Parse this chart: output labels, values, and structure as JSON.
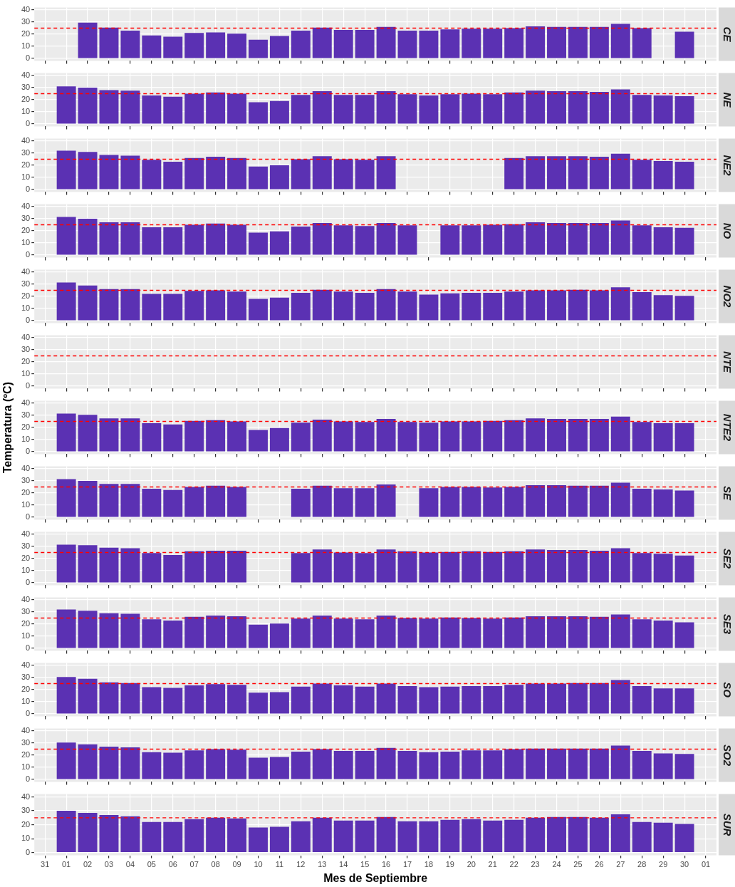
{
  "chart_data": [
    {
      "type": "bar",
      "title": "CE",
      "categories": [
        "31",
        "01",
        "02",
        "03",
        "04",
        "05",
        "06",
        "07",
        "08",
        "09",
        "10",
        "11",
        "12",
        "13",
        "14",
        "15",
        "16",
        "17",
        "18",
        "19",
        "20",
        "21",
        "22",
        "23",
        "24",
        "25",
        "26",
        "27",
        "28",
        "29",
        "30",
        "01"
      ],
      "values": [
        null,
        null,
        29.5,
        25.5,
        23,
        19,
        18,
        21,
        21.5,
        20.5,
        15.5,
        18.5,
        23,
        25.5,
        23.5,
        23.5,
        26,
        23,
        23,
        24,
        24.5,
        24.5,
        25,
        26.5,
        26,
        26,
        26,
        28.5,
        25,
        null,
        22,
        null
      ],
      "color": "#5b31b3",
      "ylim": [
        -2,
        42
      ],
      "yticks": [
        0,
        10,
        20,
        30,
        40
      ],
      "grid": true,
      "ref_lines": [
        {
          "axis": "y",
          "value": 25,
          "color": "#ff0000",
          "line_style": "dashed"
        }
      ],
      "tick_labels": "y"
    },
    {
      "type": "bar",
      "title": "NE",
      "categories": [
        "31",
        "01",
        "02",
        "03",
        "04",
        "05",
        "06",
        "07",
        "08",
        "09",
        "10",
        "11",
        "12",
        "13",
        "14",
        "15",
        "16",
        "17",
        "18",
        "19",
        "20",
        "21",
        "22",
        "23",
        "24",
        "25",
        "26",
        "27",
        "28",
        "29",
        "30",
        "01"
      ],
      "values": [
        null,
        31,
        30,
        28,
        27.5,
        23.5,
        22.5,
        25,
        26,
        25,
        18,
        19,
        24,
        27,
        24,
        24,
        27,
        24.5,
        23.5,
        24.5,
        25,
        24.5,
        26,
        27.5,
        27,
        27,
        26.5,
        28.5,
        24,
        23.5,
        23,
        null
      ],
      "color": "#5b31b3",
      "ylim": [
        -2,
        42
      ],
      "yticks": [
        0,
        10,
        20,
        30,
        40
      ],
      "grid": true,
      "ref_lines": [
        {
          "axis": "y",
          "value": 25,
          "color": "#ff0000",
          "line_style": "dashed"
        }
      ],
      "tick_labels": "y"
    },
    {
      "type": "bar",
      "title": "NE2",
      "categories": [
        "31",
        "01",
        "02",
        "03",
        "04",
        "05",
        "06",
        "07",
        "08",
        "09",
        "10",
        "11",
        "12",
        "13",
        "14",
        "15",
        "16",
        "17",
        "18",
        "19",
        "20",
        "21",
        "22",
        "23",
        "24",
        "25",
        "26",
        "27",
        "28",
        "29",
        "30",
        "01"
      ],
      "values": [
        null,
        32,
        31,
        28.5,
        28,
        24.5,
        23,
        26,
        27,
        26,
        19,
        20,
        25,
        27.5,
        25,
        24.5,
        27.5,
        null,
        null,
        null,
        null,
        null,
        26,
        27.5,
        27.5,
        27.5,
        27,
        29.5,
        24.5,
        23.5,
        23,
        null
      ],
      "color": "#5b31b3",
      "ylim": [
        -2,
        42
      ],
      "yticks": [
        0,
        10,
        20,
        30,
        40
      ],
      "grid": true,
      "ref_lines": [
        {
          "axis": "y",
          "value": 25,
          "color": "#ff0000",
          "line_style": "dashed"
        }
      ],
      "tick_labels": "y"
    },
    {
      "type": "bar",
      "title": "NO",
      "categories": [
        "31",
        "01",
        "02",
        "03",
        "04",
        "05",
        "06",
        "07",
        "08",
        "09",
        "10",
        "11",
        "12",
        "13",
        "14",
        "15",
        "16",
        "17",
        "18",
        "19",
        "20",
        "21",
        "22",
        "23",
        "24",
        "25",
        "26",
        "27",
        "28",
        "29",
        "30",
        "01"
      ],
      "values": [
        null,
        31.5,
        30,
        27,
        27,
        23,
        23,
        25,
        26,
        25,
        18.5,
        19.5,
        23.5,
        26.5,
        24.5,
        24,
        26.5,
        24.5,
        null,
        24.5,
        24.5,
        25,
        25.5,
        27,
        26.5,
        26.5,
        26.5,
        28.5,
        24.5,
        23,
        22.5,
        null
      ],
      "color": "#5b31b3",
      "ylim": [
        -2,
        42
      ],
      "yticks": [
        0,
        10,
        20,
        30,
        40
      ],
      "grid": true,
      "ref_lines": [
        {
          "axis": "y",
          "value": 25,
          "color": "#ff0000",
          "line_style": "dashed"
        }
      ],
      "tick_labels": "y"
    },
    {
      "type": "bar",
      "title": "NO2",
      "categories": [
        "31",
        "01",
        "02",
        "03",
        "04",
        "05",
        "06",
        "07",
        "08",
        "09",
        "10",
        "11",
        "12",
        "13",
        "14",
        "15",
        "16",
        "17",
        "18",
        "19",
        "20",
        "21",
        "22",
        "23",
        "24",
        "25",
        "26",
        "27",
        "28",
        "29",
        "30",
        "01"
      ],
      "values": [
        null,
        31.5,
        29,
        26,
        26,
        22,
        22,
        24.5,
        25,
        24,
        18,
        19,
        23,
        25.5,
        24,
        23,
        26,
        24,
        21.5,
        22.5,
        23,
        23,
        24,
        25,
        25,
        25.5,
        25,
        27.5,
        23.5,
        21,
        20.5,
        null
      ],
      "color": "#5b31b3",
      "ylim": [
        -2,
        42
      ],
      "yticks": [
        0,
        10,
        20,
        30,
        40
      ],
      "grid": true,
      "ref_lines": [
        {
          "axis": "y",
          "value": 25,
          "color": "#ff0000",
          "line_style": "dashed"
        }
      ],
      "tick_labels": "y"
    },
    {
      "type": "bar",
      "title": "NTE",
      "categories": [
        "31",
        "01",
        "02",
        "03",
        "04",
        "05",
        "06",
        "07",
        "08",
        "09",
        "10",
        "11",
        "12",
        "13",
        "14",
        "15",
        "16",
        "17",
        "18",
        "19",
        "20",
        "21",
        "22",
        "23",
        "24",
        "25",
        "26",
        "27",
        "28",
        "29",
        "30",
        "01"
      ],
      "values": [
        null,
        null,
        null,
        null,
        null,
        null,
        null,
        null,
        null,
        null,
        null,
        null,
        null,
        null,
        null,
        null,
        null,
        null,
        null,
        null,
        null,
        null,
        null,
        null,
        null,
        null,
        null,
        null,
        null,
        null,
        null,
        null
      ],
      "color": "#5b31b3",
      "ylim": [
        -2,
        42
      ],
      "yticks": [
        0,
        10,
        20,
        30,
        40
      ],
      "grid": true,
      "ref_lines": [
        {
          "axis": "y",
          "value": 25,
          "color": "#ff0000",
          "line_style": "dashed"
        }
      ],
      "tick_labels": "y"
    },
    {
      "type": "bar",
      "title": "NTE2",
      "ylabel": "Temperatura (ºC)",
      "categories": [
        "31",
        "01",
        "02",
        "03",
        "04",
        "05",
        "06",
        "07",
        "08",
        "09",
        "10",
        "11",
        "12",
        "13",
        "14",
        "15",
        "16",
        "17",
        "18",
        "19",
        "20",
        "21",
        "22",
        "23",
        "24",
        "25",
        "26",
        "27",
        "28",
        "29",
        "30",
        "01"
      ],
      "values": [
        null,
        31.5,
        30.5,
        27.5,
        27.5,
        23.5,
        22.5,
        25.5,
        26,
        25,
        18,
        19.5,
        24,
        26.5,
        25,
        24.5,
        27,
        24.5,
        24,
        25,
        25,
        25.5,
        26,
        27.5,
        27,
        27,
        27,
        29,
        24.5,
        23.5,
        23.5,
        null
      ],
      "color": "#5b31b3",
      "ylim": [
        -2,
        42
      ],
      "yticks": [
        0,
        10,
        20,
        30,
        40
      ],
      "grid": true,
      "ref_lines": [
        {
          "axis": "y",
          "value": 25,
          "color": "#ff0000",
          "line_style": "dashed"
        }
      ],
      "tick_labels": "y"
    },
    {
      "type": "bar",
      "title": "SE",
      "categories": [
        "31",
        "01",
        "02",
        "03",
        "04",
        "05",
        "06",
        "07",
        "08",
        "09",
        "10",
        "11",
        "12",
        "13",
        "14",
        "15",
        "16",
        "17",
        "18",
        "19",
        "20",
        "21",
        "22",
        "23",
        "24",
        "25",
        "26",
        "27",
        "28",
        "29",
        "30",
        "01"
      ],
      "values": [
        null,
        31.5,
        30,
        27.5,
        27.5,
        23.5,
        22.5,
        25,
        26,
        25,
        null,
        null,
        23.5,
        26,
        24,
        24,
        27,
        null,
        24,
        25,
        25,
        24.5,
        25,
        26.5,
        26.5,
        26,
        26,
        28.5,
        23.5,
        23,
        22,
        null
      ],
      "color": "#5b31b3",
      "ylim": [
        -2,
        42
      ],
      "yticks": [
        0,
        10,
        20,
        30,
        40
      ],
      "grid": true,
      "ref_lines": [
        {
          "axis": "y",
          "value": 25,
          "color": "#ff0000",
          "line_style": "dashed"
        }
      ],
      "tick_labels": "y"
    },
    {
      "type": "bar",
      "title": "SE2",
      "categories": [
        "31",
        "01",
        "02",
        "03",
        "04",
        "05",
        "06",
        "07",
        "08",
        "09",
        "10",
        "11",
        "12",
        "13",
        "14",
        "15",
        "16",
        "17",
        "18",
        "19",
        "20",
        "21",
        "22",
        "23",
        "24",
        "25",
        "26",
        "27",
        "28",
        "29",
        "30",
        "01"
      ],
      "values": [
        null,
        31.5,
        31,
        29,
        28.5,
        24.5,
        23,
        26,
        26.5,
        26.5,
        null,
        null,
        24.5,
        27.5,
        25,
        24.5,
        27.5,
        26,
        25,
        25.5,
        26,
        25.5,
        26,
        27.5,
        27,
        27,
        26.5,
        28.5,
        24.5,
        24,
        22.5,
        null
      ],
      "color": "#5b31b3",
      "ylim": [
        -2,
        42
      ],
      "yticks": [
        0,
        10,
        20,
        30,
        40
      ],
      "grid": true,
      "ref_lines": [
        {
          "axis": "y",
          "value": 25,
          "color": "#ff0000",
          "line_style": "dashed"
        }
      ],
      "tick_labels": "y"
    },
    {
      "type": "bar",
      "title": "SE3",
      "categories": [
        "31",
        "01",
        "02",
        "03",
        "04",
        "05",
        "06",
        "07",
        "08",
        "09",
        "10",
        "11",
        "12",
        "13",
        "14",
        "15",
        "16",
        "17",
        "18",
        "19",
        "20",
        "21",
        "22",
        "23",
        "24",
        "25",
        "26",
        "27",
        "28",
        "29",
        "30",
        "01"
      ],
      "values": [
        null,
        32,
        31,
        29,
        28.5,
        24,
        23,
        26,
        27,
        26.5,
        19.5,
        20.5,
        24.5,
        27,
        24.5,
        24,
        27,
        25,
        24.5,
        25.5,
        25,
        24.5,
        25.5,
        26.5,
        26.5,
        26.5,
        26,
        28,
        24,
        23,
        21.5,
        null
      ],
      "color": "#5b31b3",
      "ylim": [
        -2,
        42
      ],
      "yticks": [
        0,
        10,
        20,
        30,
        40
      ],
      "grid": true,
      "ref_lines": [
        {
          "axis": "y",
          "value": 25,
          "color": "#ff0000",
          "line_style": "dashed"
        }
      ],
      "tick_labels": "y"
    },
    {
      "type": "bar",
      "title": "SO",
      "categories": [
        "31",
        "01",
        "02",
        "03",
        "04",
        "05",
        "06",
        "07",
        "08",
        "09",
        "10",
        "11",
        "12",
        "13",
        "14",
        "15",
        "16",
        "17",
        "18",
        "19",
        "20",
        "21",
        "22",
        "23",
        "24",
        "25",
        "26",
        "27",
        "28",
        "29",
        "30",
        "01"
      ],
      "values": [
        null,
        30.5,
        29,
        26,
        25.5,
        22,
        21.5,
        23.5,
        24.5,
        24,
        17.5,
        18,
        22.5,
        25,
        23.5,
        22.5,
        25,
        23,
        22,
        22.5,
        23,
        23,
        24,
        25,
        25,
        25.5,
        25.5,
        28,
        23,
        21,
        21,
        null
      ],
      "color": "#5b31b3",
      "ylim": [
        -2,
        42
      ],
      "yticks": [
        0,
        10,
        20,
        30,
        40
      ],
      "grid": true,
      "ref_lines": [
        {
          "axis": "y",
          "value": 25,
          "color": "#ff0000",
          "line_style": "dashed"
        }
      ],
      "tick_labels": "y"
    },
    {
      "type": "bar",
      "title": "SO2",
      "categories": [
        "31",
        "01",
        "02",
        "03",
        "04",
        "05",
        "06",
        "07",
        "08",
        "09",
        "10",
        "11",
        "12",
        "13",
        "14",
        "15",
        "16",
        "17",
        "18",
        "19",
        "20",
        "21",
        "22",
        "23",
        "24",
        "25",
        "26",
        "27",
        "28",
        "29",
        "30",
        "01"
      ],
      "values": [
        null,
        30.5,
        29,
        27,
        26.5,
        22.5,
        22,
        24,
        25,
        24.5,
        18,
        18.5,
        23,
        25,
        23.5,
        23.5,
        26,
        23.5,
        22.5,
        23,
        24,
        24,
        25,
        25.5,
        25.5,
        25.5,
        25.5,
        28,
        23.5,
        21.5,
        21,
        null
      ],
      "color": "#5b31b3",
      "ylim": [
        -2,
        42
      ],
      "yticks": [
        0,
        10,
        20,
        30,
        40
      ],
      "grid": true,
      "ref_lines": [
        {
          "axis": "y",
          "value": 25,
          "color": "#ff0000",
          "line_style": "dashed"
        }
      ],
      "tick_labels": "y"
    },
    {
      "type": "bar",
      "title": "SUR",
      "xlabel": "Mes de Septiembre",
      "categories": [
        "31",
        "01",
        "02",
        "03",
        "04",
        "05",
        "06",
        "07",
        "08",
        "09",
        "10",
        "11",
        "12",
        "13",
        "14",
        "15",
        "16",
        "17",
        "18",
        "19",
        "20",
        "21",
        "22",
        "23",
        "24",
        "25",
        "26",
        "27",
        "28",
        "29",
        "30",
        "01"
      ],
      "values": [
        null,
        30,
        28.5,
        27,
        26,
        22,
        22,
        24,
        25,
        24.5,
        18,
        18.5,
        22.5,
        25,
        23,
        23,
        25.5,
        22.5,
        22.5,
        23.5,
        24,
        23,
        23.5,
        25,
        25.5,
        25.5,
        25,
        27.5,
        22,
        21.5,
        20.5,
        null
      ],
      "color": "#5b31b3",
      "ylim": [
        -2,
        42
      ],
      "yticks": [
        0,
        10,
        20,
        30,
        40
      ],
      "grid": true,
      "ref_lines": [
        {
          "axis": "y",
          "value": 25,
          "color": "#ff0000",
          "line_style": "dashed"
        }
      ]
    }
  ]
}
